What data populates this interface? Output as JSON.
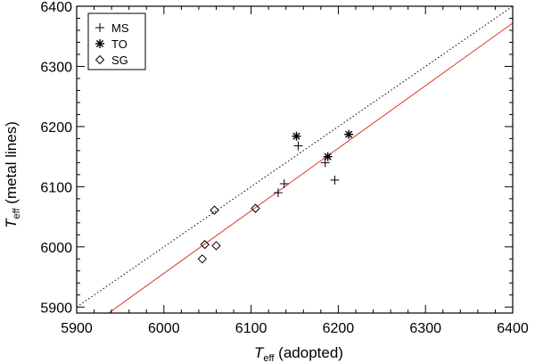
{
  "chart_data": {
    "type": "scatter",
    "xlabel": {
      "main": "T",
      "sub": "eff",
      "rest": " (adopted)"
    },
    "ylabel": {
      "main": "T",
      "sub": "eff",
      "rest": " (metal lines)"
    },
    "xlim": [
      5900,
      6400
    ],
    "ylim": [
      5890,
      6400
    ],
    "xticks": [
      5900,
      6000,
      6100,
      6200,
      6300,
      6400
    ],
    "yticks": [
      5900,
      6000,
      6100,
      6200,
      6300,
      6400
    ],
    "legend_position": "top-left",
    "series": [
      {
        "name": "MS",
        "marker": "plus",
        "points": [
          [
            6131,
            6090
          ],
          [
            6138,
            6105
          ],
          [
            6154,
            6168
          ],
          [
            6185,
            6140
          ],
          [
            6196,
            6111
          ]
        ]
      },
      {
        "name": "TO",
        "marker": "asterisk",
        "points": [
          [
            6152,
            6184
          ],
          [
            6188,
            6150
          ],
          [
            6212,
            6187
          ]
        ]
      },
      {
        "name": "SG",
        "marker": "diamond",
        "points": [
          [
            6058,
            6061
          ],
          [
            6047,
            6004
          ],
          [
            6060,
            6002
          ],
          [
            6044,
            5980
          ],
          [
            6105,
            6064
          ]
        ]
      }
    ],
    "lines": [
      {
        "style": "dotted",
        "color": "#000000",
        "points": [
          [
            5900,
            5900
          ],
          [
            6400,
            6400
          ]
        ]
      },
      {
        "style": "solid",
        "color": "#e2332a",
        "points": [
          [
            5900,
            5852
          ],
          [
            6400,
            6372
          ]
        ]
      }
    ]
  }
}
